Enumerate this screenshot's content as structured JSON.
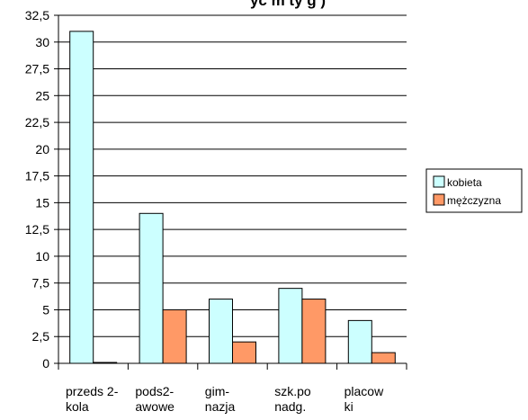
{
  "chart_data": {
    "type": "bar",
    "title": "",
    "title_fragment": "yc  m  ty  g   )",
    "xlabel": "",
    "ylabel": "",
    "categories": [
      [
        "przeds 2-",
        "kola"
      ],
      [
        "pods2-",
        "awowe"
      ],
      [
        "gim-",
        "nazja"
      ],
      [
        "szk.po",
        "nadg."
      ],
      [
        "placow",
        "ki"
      ]
    ],
    "series": [
      {
        "name": "kobieta",
        "values": [
          31,
          14,
          6,
          7,
          4
        ],
        "color": "#ccffff"
      },
      {
        "name": "mężczyzna",
        "values": [
          0,
          5,
          2,
          6,
          1
        ],
        "color": "#ff9966"
      }
    ],
    "ylim": [
      0,
      32.5
    ],
    "yticks": [
      "0",
      "2,5",
      "5",
      "7,5",
      "10",
      "12,5",
      "15",
      "17,5",
      "20",
      "22,5",
      "25",
      "27,5",
      "30",
      "32,5"
    ],
    "grid": true,
    "legend_position": "right"
  }
}
